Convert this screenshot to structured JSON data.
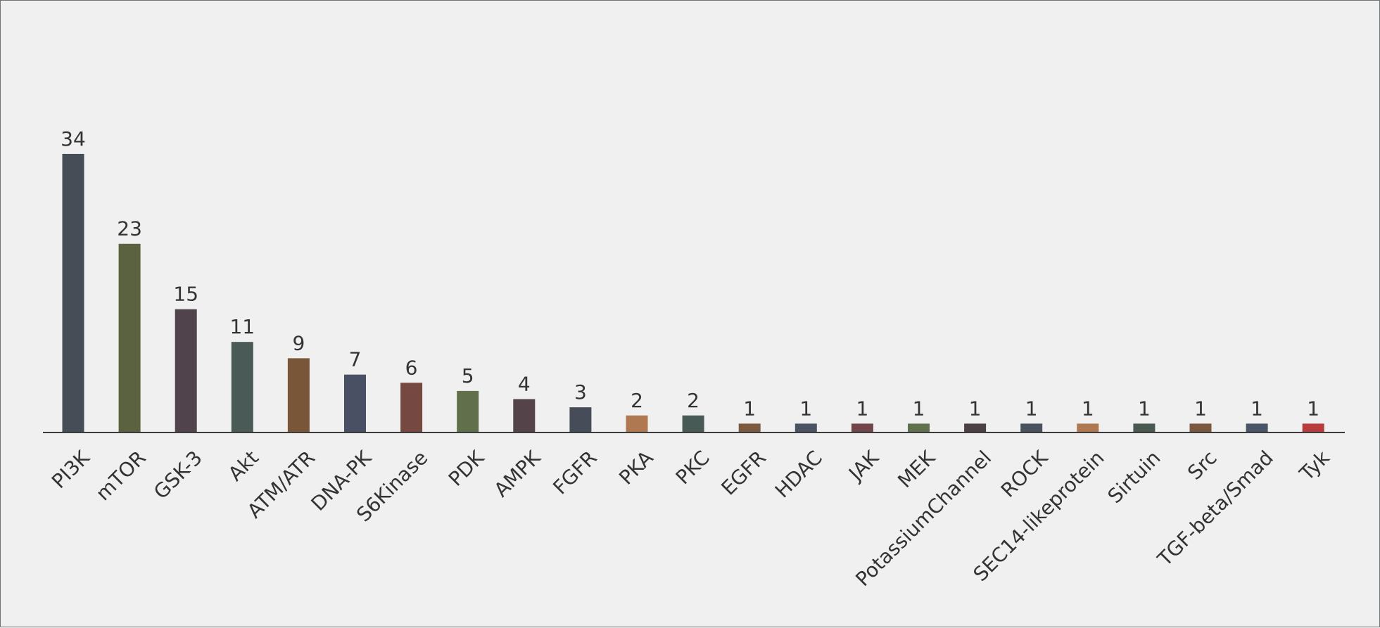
{
  "chart_data": {
    "type": "bar",
    "title": "",
    "xlabel": "",
    "ylabel": "",
    "ylim": [
      0,
      34
    ],
    "grid": false,
    "legend": "none",
    "categories": [
      "PI3K",
      "mTOR",
      "GSK-3",
      "Akt",
      "ATM/ATR",
      "DNA-PK",
      "S6Kinase",
      "PDK",
      "AMPK",
      "FGFR",
      "PKA",
      "PKC",
      "EGFR",
      "HDAC",
      "JAK",
      "MEK",
      "PotassiumChannel",
      "ROCK",
      "SEC14-likeprotein",
      "Sirtuin",
      "Src",
      "TGF-beta/Smad",
      "Tyk"
    ],
    "values": [
      34,
      23,
      15,
      11,
      9,
      7,
      6,
      5,
      4,
      3,
      2,
      2,
      1,
      1,
      1,
      1,
      1,
      1,
      1,
      1,
      1,
      1,
      1
    ],
    "colors": [
      "#474d57",
      "#5b6240",
      "#50434b",
      "#4a5b57",
      "#7a5639",
      "#4a5063",
      "#754841",
      "#61704a",
      "#544349",
      "#464c58",
      "#b07850",
      "#485a56",
      "#7b5a40",
      "#4a5263",
      "#71454a",
      "#61714e",
      "#4a4146",
      "#4a5260",
      "#b07852",
      "#48594f",
      "#7a5840",
      "#4a5467",
      "#b83c3d"
    ],
    "axis_color": "#3c3c3c"
  }
}
